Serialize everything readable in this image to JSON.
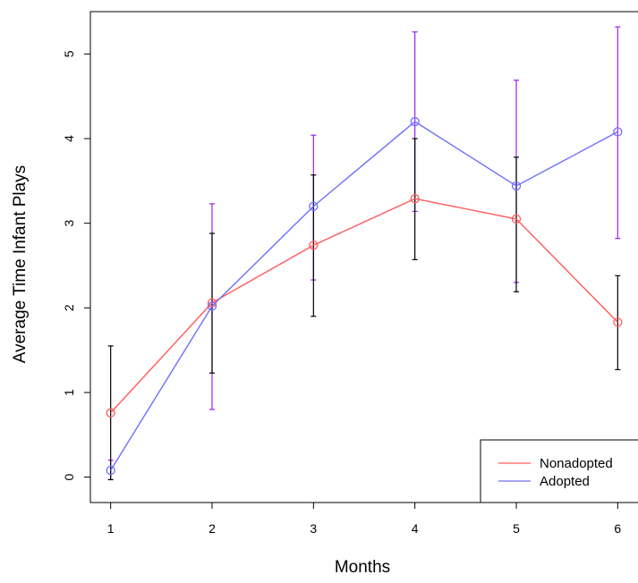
{
  "chart_data": {
    "type": "line",
    "title": "",
    "xlabel": "Months",
    "ylabel": "Average Time Infant Plays",
    "x": [
      1,
      2,
      3,
      4,
      5,
      6
    ],
    "x_ticks": [
      "1",
      "2",
      "3",
      "4",
      "5",
      "6"
    ],
    "y_ticks": [
      "0",
      "1",
      "2",
      "3",
      "4",
      "5"
    ],
    "xlim": [
      0.8,
      6.2
    ],
    "ylim": [
      -0.3,
      5.5
    ],
    "grid": false,
    "legend_position": "bottom-right",
    "series": [
      {
        "name": "Nonadopted",
        "color": "#ff5b5b",
        "errorbar_color": "#000000",
        "values": [
          0.76,
          2.06,
          2.74,
          3.29,
          3.05,
          1.83
        ],
        "lower": [
          -0.03,
          1.23,
          1.9,
          2.57,
          2.19,
          1.27
        ],
        "upper": [
          1.55,
          2.88,
          3.57,
          4.0,
          3.78,
          2.38
        ]
      },
      {
        "name": "Adopted",
        "color": "#6f6fff",
        "errorbar_color": "#a020f0",
        "values": [
          0.08,
          2.02,
          3.2,
          4.2,
          3.44,
          4.08
        ],
        "lower": [
          -0.03,
          0.8,
          2.33,
          3.14,
          2.3,
          2.82
        ],
        "upper": [
          0.2,
          3.23,
          4.04,
          5.26,
          4.69,
          5.32
        ]
      }
    ]
  }
}
